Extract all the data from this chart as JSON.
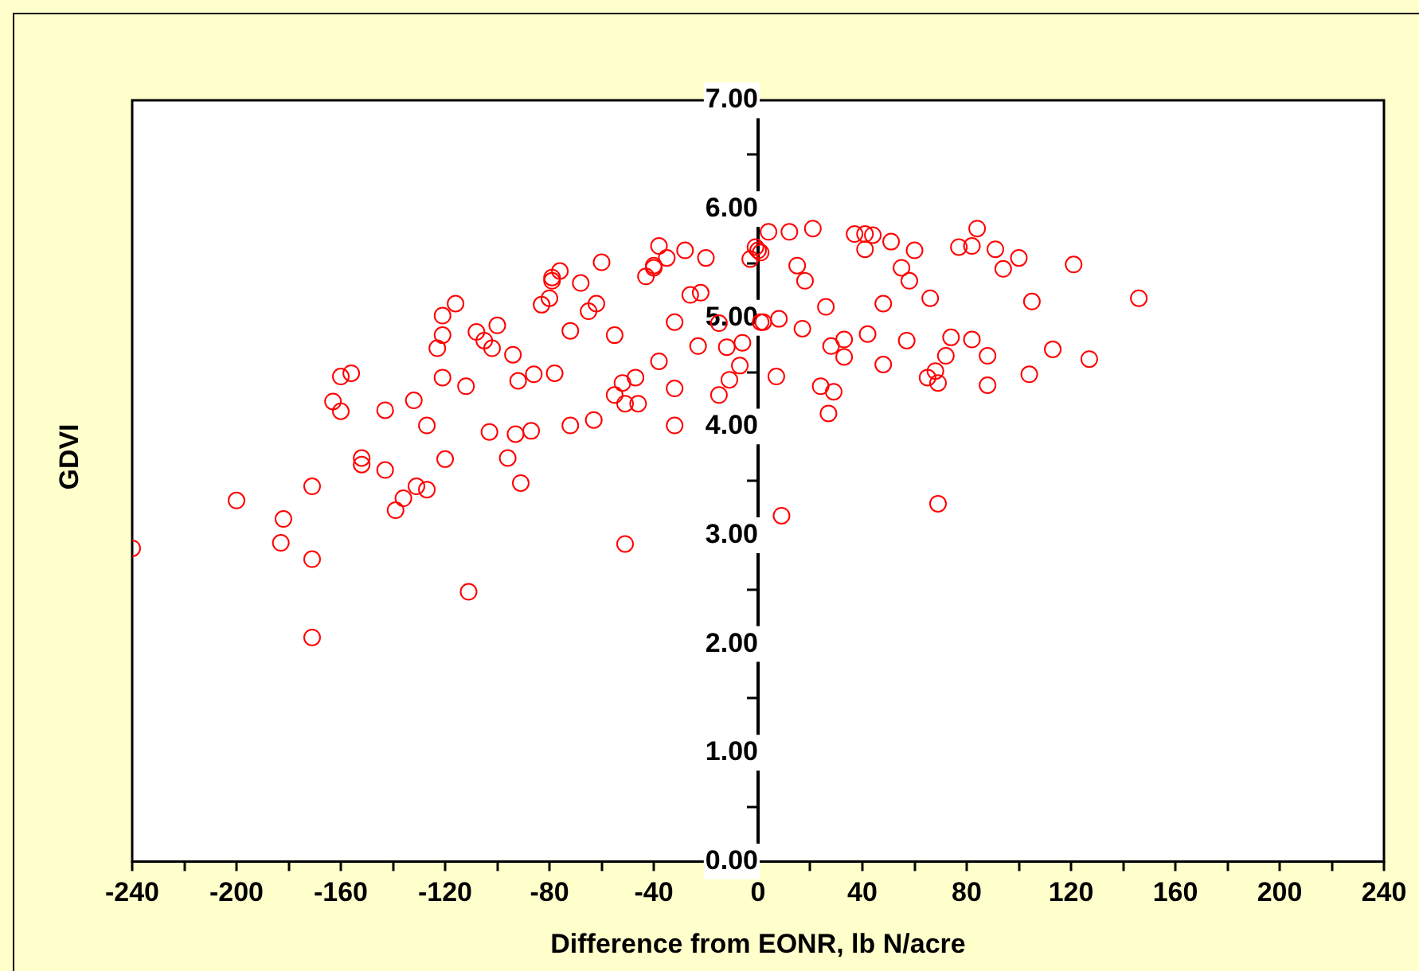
{
  "chart_data": {
    "type": "scatter",
    "xlabel": "Difference from EONR, lb N/acre",
    "ylabel": "GDVI",
    "marker": "circle",
    "grid": false,
    "legend": false,
    "xlim": [
      -240,
      240
    ],
    "ylim": [
      0,
      7
    ],
    "xticks": [
      -240,
      {
        "value": -220,
        "label": null
      },
      -200,
      {
        "value": -180,
        "label": null
      },
      -160,
      {
        "value": -140,
        "label": null
      },
      -120,
      {
        "value": -100,
        "label": null
      },
      -80,
      {
        "value": -60,
        "label": null
      },
      -40,
      {
        "value": -20,
        "label": null
      },
      0,
      {
        "value": 20,
        "label": null
      },
      40,
      {
        "value": 60,
        "label": null
      },
      80,
      {
        "value": 100,
        "label": null
      },
      120,
      {
        "value": 140,
        "label": null
      },
      160,
      {
        "value": 180,
        "label": null
      },
      200,
      {
        "value": 220,
        "label": null
      },
      240
    ],
    "yticks": [
      {
        "value": 0,
        "label": "0.00"
      },
      {
        "value": 0.5,
        "label": null
      },
      {
        "value": 1,
        "label": "1.00"
      },
      {
        "value": 1.5,
        "label": null
      },
      {
        "value": 2,
        "label": "2.00"
      },
      {
        "value": 2.5,
        "label": null
      },
      {
        "value": 3,
        "label": "3.00"
      },
      {
        "value": 3.5,
        "label": null
      },
      {
        "value": 4,
        "label": "4.00"
      },
      {
        "value": 4.5,
        "label": null
      },
      {
        "value": 5,
        "label": "5.00"
      },
      {
        "value": 5.5,
        "label": null
      },
      {
        "value": 6,
        "label": "6.00"
      },
      {
        "value": 6.5,
        "label": null
      },
      {
        "value": 7,
        "label": "7.00"
      }
    ],
    "series": [
      {
        "color": "#ff0000",
        "x": [
          -240,
          -200,
          -182,
          -183,
          -171,
          -171,
          -171,
          -160,
          -156,
          -163,
          -160,
          -143,
          -132,
          -127,
          -152,
          -152,
          -143,
          -139,
          -136,
          -131,
          -127,
          -121,
          -121,
          -123,
          -121,
          -120,
          -116,
          -112,
          -111,
          -108,
          -105,
          -102,
          -100,
          -94,
          -92,
          -86,
          -103,
          -96,
          -93,
          -87,
          -91,
          -78,
          -83,
          -80,
          -79,
          -79,
          -76,
          -72,
          -72,
          -68,
          -65,
          -62,
          -60,
          -63,
          -55,
          -55,
          -52,
          -47,
          -51,
          -46,
          -51,
          -43,
          -40,
          -40,
          -38,
          -35,
          -38,
          -32,
          -32,
          -32,
          -28,
          -26,
          -22,
          -20,
          -23,
          -15,
          -12,
          -6,
          -7,
          -11,
          -15,
          -3,
          -1,
          0,
          1,
          1,
          4,
          12,
          21,
          15,
          18,
          26,
          2,
          8,
          17,
          7,
          28,
          33,
          33,
          24,
          29,
          27,
          9,
          37,
          41,
          44,
          41,
          42,
          48,
          48,
          51,
          55,
          58,
          60,
          57,
          66,
          74,
          72,
          68,
          65,
          69,
          69,
          77,
          82,
          84,
          82,
          88,
          88,
          91,
          94,
          100,
          105,
          104,
          113,
          121,
          127,
          146
        ],
        "values": [
          2.88,
          3.32,
          3.15,
          2.93,
          3.45,
          2.78,
          2.06,
          4.46,
          4.49,
          4.23,
          4.14,
          4.15,
          4.24,
          4.01,
          3.71,
          3.65,
          3.6,
          3.23,
          3.34,
          3.45,
          3.42,
          5.02,
          4.84,
          4.72,
          4.45,
          3.7,
          5.13,
          4.37,
          2.48,
          4.87,
          4.79,
          4.72,
          4.93,
          4.66,
          4.42,
          4.48,
          3.95,
          3.71,
          3.93,
          3.96,
          3.48,
          4.49,
          5.12,
          5.18,
          5.37,
          5.34,
          5.43,
          4.88,
          4.01,
          5.32,
          5.06,
          5.13,
          5.51,
          4.06,
          4.84,
          4.29,
          4.4,
          4.45,
          4.21,
          4.21,
          2.92,
          5.38,
          5.46,
          5.48,
          5.66,
          5.55,
          4.6,
          4.96,
          4.35,
          4.01,
          5.62,
          5.21,
          5.23,
          5.55,
          4.74,
          4.95,
          4.73,
          4.77,
          4.56,
          4.43,
          4.29,
          5.54,
          5.65,
          5.62,
          5.6,
          4.96,
          5.79,
          5.79,
          5.82,
          5.48,
          5.34,
          5.1,
          4.96,
          4.99,
          4.9,
          4.46,
          4.74,
          4.8,
          4.64,
          4.37,
          4.32,
          4.12,
          3.18,
          5.77,
          5.77,
          5.76,
          5.63,
          4.85,
          5.13,
          4.57,
          5.7,
          5.46,
          5.34,
          5.62,
          4.79,
          5.18,
          4.82,
          4.65,
          4.51,
          4.45,
          4.4,
          3.29,
          5.65,
          5.66,
          5.82,
          4.8,
          4.65,
          4.38,
          5.63,
          5.45,
          5.55,
          5.15,
          4.48,
          4.71,
          5.49,
          4.62,
          5.18
        ]
      }
    ]
  }
}
